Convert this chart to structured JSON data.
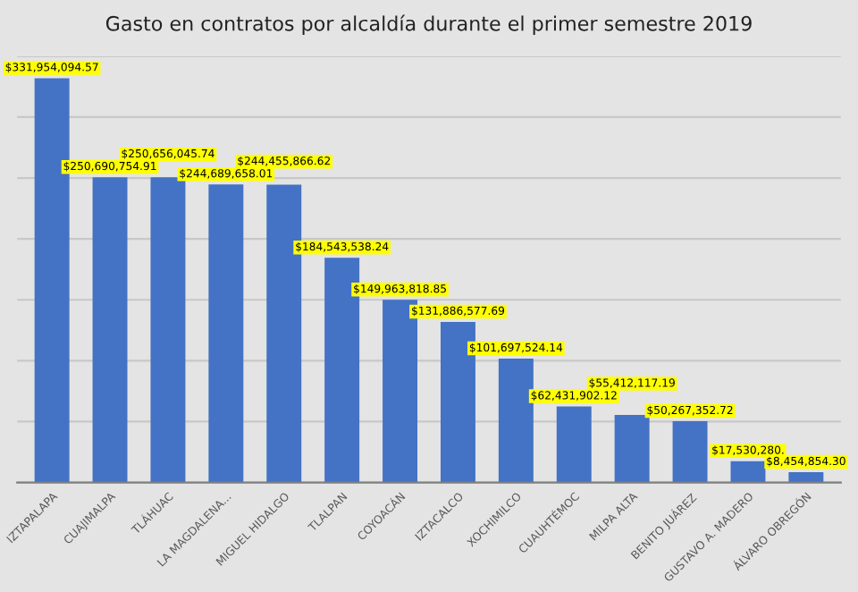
{
  "chart_data": {
    "type": "bar",
    "title": "Gasto en contratos por alcaldía durante el primer semestre 2019",
    "categories": [
      "IZTAPALAPA",
      "CUAJIMALPA",
      "TLÁHUAC",
      "LA MAGDALENA...",
      "MIGUEL HIDALGO",
      "TLALPAN",
      "COYOACÁN",
      "IZTACALCO",
      "XOCHIMILCO",
      "CUAUHTÉMOC",
      "MILPA ALTA",
      "BENITO JUÁREZ",
      "GUSTAVO A. MADERO",
      "ÁLVARO OBREGÓN"
    ],
    "values": [
      331954094.57,
      250690754.91,
      250656045.74,
      244689658.01,
      244455866.62,
      184543538.24,
      149963818.85,
      131886577.69,
      101697524.14,
      62431902.12,
      55412117.19,
      50267352.72,
      17530280,
      8454854.3
    ],
    "value_labels": [
      "$331,954,094.57",
      "$250,690,754.91",
      "$250,656,045.74",
      "$244,689,658.01",
      "$244,455,866.62",
      "$184,543,538.24",
      "$149,963,818.85",
      "$131,886,577.69",
      "$101,697,524.14",
      "$62,431,902.12",
      "$55,412,117.19",
      "$50,267,352.72",
      "$17,530,280.",
      "$8,454,854.30"
    ],
    "color": "#4472c4",
    "ylim": [
      0,
      350000000
    ],
    "yticks": [
      {
        "value": 0,
        "label": null
      },
      {
        "value": 50000000,
        "label": null
      },
      {
        "value": 100000000,
        "label": null
      },
      {
        "value": 150000000,
        "label": null
      },
      {
        "value": 200000000,
        "label": null
      },
      {
        "value": 250000000,
        "label": null
      },
      {
        "value": 300000000,
        "label": null
      },
      {
        "value": 350000000,
        "label": null
      }
    ],
    "grid": "y",
    "tick_labels": "x"
  }
}
